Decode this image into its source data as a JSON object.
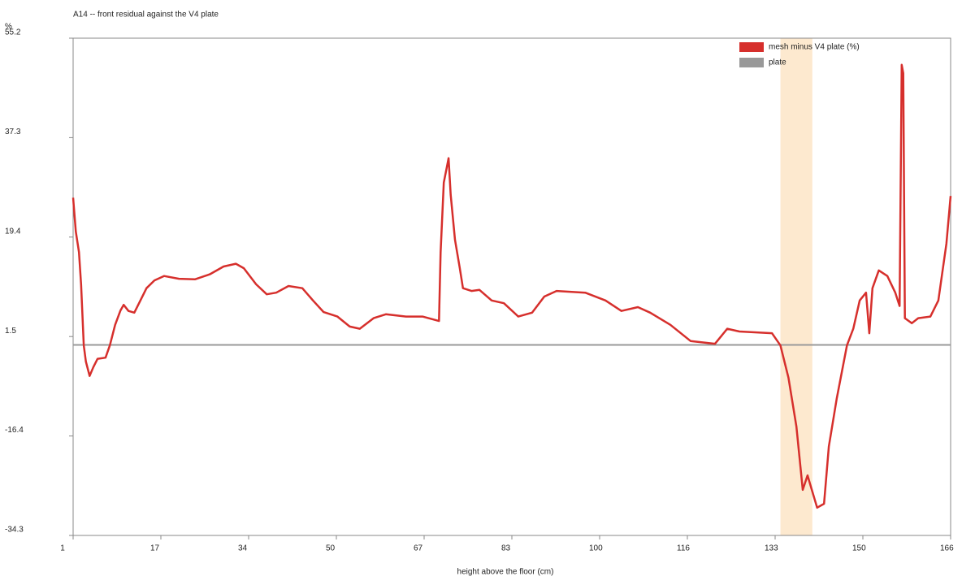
{
  "chart_data": {
    "type": "line",
    "title": "A14 -- front residual against the V4 plate",
    "y_unit": "%",
    "x_label": "height above the floor (cm)",
    "xlim": [
      1,
      166
    ],
    "ylim": [
      -34.3,
      55.2
    ],
    "xticks": [
      1,
      {
        "value": 17.5,
        "label": "17"
      },
      34,
      {
        "value": 50.5,
        "label": "50"
      },
      67,
      {
        "value": 83.5,
        "label": "83"
      },
      100,
      {
        "value": 116.5,
        "label": "116"
      },
      133,
      {
        "value": 149.5,
        "label": "150"
      },
      166
    ],
    "yticks": [
      -34.3,
      -16.4,
      1.5,
      19.4,
      37.3,
      55.2
    ],
    "highlight": {
      "from": 134,
      "to": 140,
      "color": "#fde9cf"
    },
    "reference": {
      "name": "plate",
      "value": 0,
      "color": "#999999"
    },
    "series": [
      {
        "name": "mesh minus V4 plate (%)",
        "color": "#d62f2c",
        "x": [
          1,
          1.5,
          2.1,
          2.5,
          3.0,
          3.4,
          4.1,
          4.8,
          5.6,
          7.1,
          7.9,
          8.9,
          9.9,
          10.5,
          11.4,
          12.5,
          13.5,
          14.8,
          16.3,
          18.1,
          20.9,
          23.9,
          26.7,
          29.3,
          31.6,
          33.1,
          35.4,
          37.4,
          39.2,
          41.5,
          44.1,
          46.1,
          48.1,
          50.7,
          53.0,
          54.9,
          57.5,
          59.8,
          63.6,
          66.7,
          69.8,
          70.1,
          70.7,
          71.6,
          72.0,
          72.8,
          73.7,
          74.3,
          75.9,
          77.4,
          79.7,
          82.0,
          84.7,
          87.3,
          89.6,
          91.9,
          97.3,
          101.1,
          104.1,
          107.2,
          109.5,
          113.3,
          117.1,
          121.7,
          124.0,
          126.3,
          132.4,
          134.0,
          135.5,
          137.0,
          138.2,
          139.1,
          140.0,
          140.9,
          142.2,
          143.1,
          144.6,
          146.5,
          147.7,
          148.9,
          150.1,
          150.7,
          151.3,
          152.5,
          154.1,
          155.6,
          156.4,
          156.8,
          157.1,
          157.4,
          158.7,
          159.9,
          162.2,
          163.7,
          165.2,
          166.0
        ],
        "values": [
          26.5,
          20.4,
          16.7,
          10.9,
          -0.1,
          -3.0,
          -5.6,
          -4.0,
          -2.5,
          -2.3,
          -0.1,
          3.6,
          6.2,
          7.2,
          6.1,
          5.8,
          7.7,
          10.2,
          11.6,
          12.4,
          11.9,
          11.8,
          12.7,
          14.1,
          14.6,
          13.8,
          10.9,
          9.1,
          9.4,
          10.6,
          10.2,
          8.0,
          5.9,
          5.1,
          3.3,
          2.9,
          4.8,
          5.5,
          5.1,
          5.1,
          4.3,
          16.7,
          29.2,
          33.6,
          27.0,
          18.9,
          13.8,
          10.2,
          9.7,
          9.9,
          8.0,
          7.5,
          5.1,
          5.8,
          8.7,
          9.7,
          9.4,
          8.0,
          6.1,
          6.8,
          5.8,
          3.6,
          0.7,
          0.2,
          2.9,
          2.4,
          2.1,
          -0.1,
          -5.9,
          -14.7,
          -26.1,
          -23.5,
          -26.4,
          -29.3,
          -28.6,
          -18.3,
          -9.6,
          -0.1,
          2.9,
          8.0,
          9.4,
          2.1,
          10.2,
          13.4,
          12.4,
          9.4,
          7.0,
          50.4,
          48.9,
          4.8,
          3.9,
          4.8,
          5.1,
          8.0,
          18.2,
          26.8
        ]
      }
    ]
  }
}
